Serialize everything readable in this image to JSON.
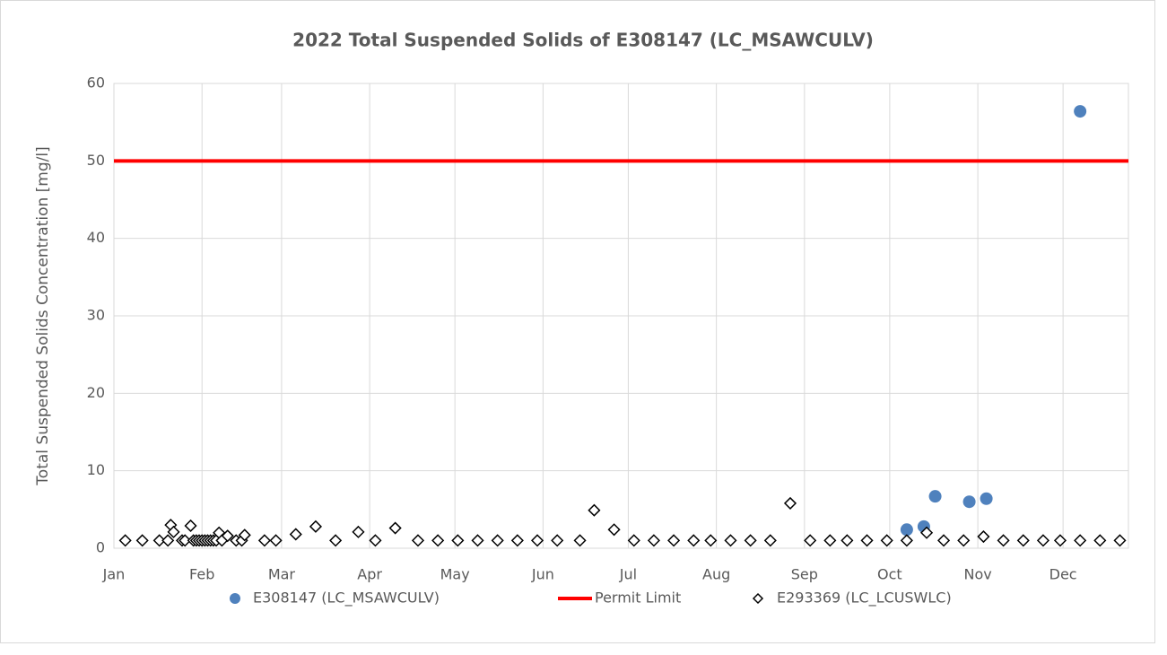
{
  "chart_data": {
    "type": "scatter",
    "title": "2022 Total Suspended Solids of E308147 (LC_MSAWCULV)",
    "y_label": "Total Suspended Solids Concentration [mg/l]",
    "xlim": [
      0,
      357
    ],
    "xticks": [
      {
        "value": 0,
        "label": "Jan"
      },
      {
        "value": 31,
        "label": "Feb"
      },
      {
        "value": 59,
        "label": "Mar"
      },
      {
        "value": 90,
        "label": "Apr"
      },
      {
        "value": 120,
        "label": "May"
      },
      {
        "value": 151,
        "label": "Jun"
      },
      {
        "value": 181,
        "label": "Jul"
      },
      {
        "value": 212,
        "label": "Aug"
      },
      {
        "value": 243,
        "label": "Sep"
      },
      {
        "value": 273,
        "label": "Oct"
      },
      {
        "value": 304,
        "label": "Nov"
      },
      {
        "value": 334,
        "label": "Dec"
      }
    ],
    "ylim": [
      0,
      60
    ],
    "yticks": [
      0,
      10,
      20,
      30,
      40,
      50,
      60
    ],
    "grid": true,
    "legend": "bottom",
    "series": [
      {
        "name": "E308147 (LC_MSAWCULV)",
        "color": "#4f81bd",
        "marker": "circle",
        "x": [
          279,
          285,
          289,
          301,
          307,
          340
        ],
        "values": [
          2.4,
          2.8,
          6.7,
          6.0,
          6.4,
          56.4
        ]
      },
      {
        "name": "Permit Limit",
        "color": "#ff0000",
        "marker": "line",
        "x": [
          0,
          357
        ],
        "values": [
          50,
          50
        ]
      },
      {
        "name": "E293369 (LC_LCUSWLC)",
        "color": "#000000",
        "marker": "diamond",
        "x": [
          4,
          10,
          16,
          19,
          20,
          21,
          24,
          25,
          27,
          28,
          29,
          30,
          31,
          32,
          33,
          34,
          35,
          36,
          37,
          38,
          40,
          43,
          45,
          46,
          53,
          57,
          64,
          71,
          78,
          86,
          92,
          99,
          107,
          114,
          121,
          128,
          135,
          142,
          149,
          156,
          164,
          169,
          176,
          183,
          190,
          197,
          204,
          210,
          217,
          224,
          231,
          238,
          245,
          252,
          258,
          265,
          272,
          279,
          286,
          292,
          299,
          306,
          313,
          320,
          327,
          333,
          340,
          347,
          354
        ],
        "values": [
          1,
          1,
          1,
          1,
          3.0,
          2.1,
          1,
          1,
          2.9,
          1,
          1,
          1,
          1,
          1,
          1,
          1,
          1,
          1,
          2.0,
          1,
          1.6,
          1,
          1,
          1.7,
          1,
          1,
          1.8,
          2.8,
          1,
          2.1,
          1,
          2.6,
          1,
          1,
          1,
          1,
          1,
          1,
          1,
          1,
          1,
          4.9,
          2.4,
          1,
          1,
          1,
          1,
          1,
          1,
          1,
          1,
          5.8,
          1,
          1,
          1,
          1,
          1,
          1,
          2.0,
          1,
          1,
          1.5,
          1,
          1,
          1,
          1,
          1,
          1,
          1
        ]
      }
    ]
  }
}
